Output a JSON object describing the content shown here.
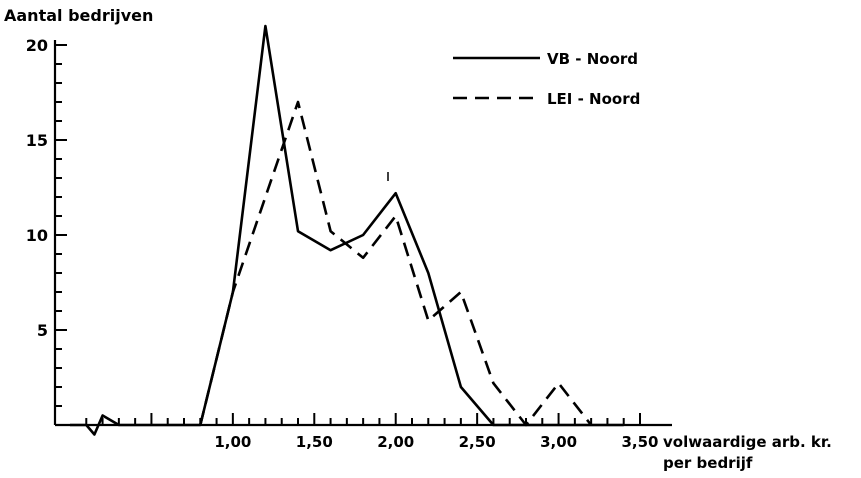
{
  "chart_data": {
    "type": "line",
    "title": "",
    "ylabel": "Aantal bedrijven",
    "xlabel_line1": "volwaardige arb. kr.",
    "xlabel_line2": "per bedrijf",
    "xlim": [
      0.0,
      3.5
    ],
    "ylim": [
      0,
      21
    ],
    "x_ticks": [
      "1,00",
      "1,50",
      "2,00",
      "2,50",
      "3,00",
      "3,50"
    ],
    "y_ticks": [
      "5",
      "10",
      "15",
      "20"
    ],
    "x_tick_values": [
      1.0,
      1.5,
      2.0,
      2.5,
      3.0,
      3.5
    ],
    "y_tick_values": [
      5,
      10,
      15,
      20
    ],
    "legend": {
      "placement": "top-right"
    },
    "grid": false,
    "series": [
      {
        "name": "VB - Noord",
        "style": "solid",
        "x": [
          0.0,
          0.1,
          0.15,
          0.2,
          0.3,
          0.4,
          0.6,
          0.8,
          1.0,
          1.2,
          1.4,
          1.6,
          1.8,
          2.0,
          2.2,
          2.4,
          2.6,
          2.8,
          3.0,
          3.2,
          3.4
        ],
        "y": [
          0.0,
          0.0,
          -0.5,
          0.5,
          0.0,
          0.0,
          0.0,
          0.0,
          7.0,
          21.0,
          10.2,
          9.2,
          10.0,
          12.2,
          8.0,
          2.0,
          0.0,
          0.0,
          0.0,
          0.0,
          0.0
        ]
      },
      {
        "name": "LEI - Noord",
        "style": "dashed",
        "x": [
          0.8,
          1.0,
          1.2,
          1.4,
          1.6,
          1.8,
          2.0,
          2.2,
          2.4,
          2.6,
          2.8,
          3.0,
          3.2
        ],
        "y": [
          0.0,
          7.0,
          12.0,
          17.0,
          10.2,
          8.8,
          11.0,
          5.5,
          7.0,
          2.2,
          0.0,
          2.2,
          0.0
        ]
      }
    ]
  }
}
